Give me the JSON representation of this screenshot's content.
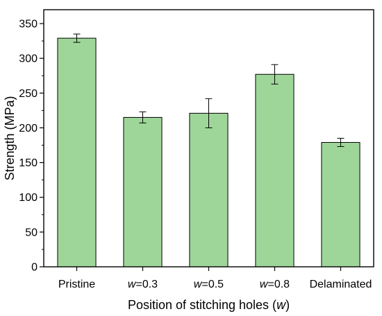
{
  "chart_data": {
    "type": "bar",
    "categories": [
      {
        "prefix": "",
        "italic": "",
        "suffix": "Pristine"
      },
      {
        "prefix": "",
        "italic": "w",
        "suffix": "=0.3"
      },
      {
        "prefix": "",
        "italic": "w",
        "suffix": "=0.5"
      },
      {
        "prefix": "",
        "italic": "w",
        "suffix": "=0.8"
      },
      {
        "prefix": "",
        "italic": "",
        "suffix": "Delaminated"
      }
    ],
    "values": [
      329,
      215,
      221,
      277,
      179
    ],
    "errors": [
      6,
      8,
      21,
      14,
      6
    ],
    "xlabel": {
      "prefix": "Position of stitching holes (",
      "italic": "w",
      "suffix": ")"
    },
    "ylabel": "Strength (MPa)",
    "ylim": [
      0,
      370
    ],
    "yticks": [
      0,
      50,
      100,
      150,
      200,
      250,
      300,
      350
    ],
    "grid": false,
    "bar_color": "#9ED69A",
    "bar_edge_color": "#000000"
  }
}
